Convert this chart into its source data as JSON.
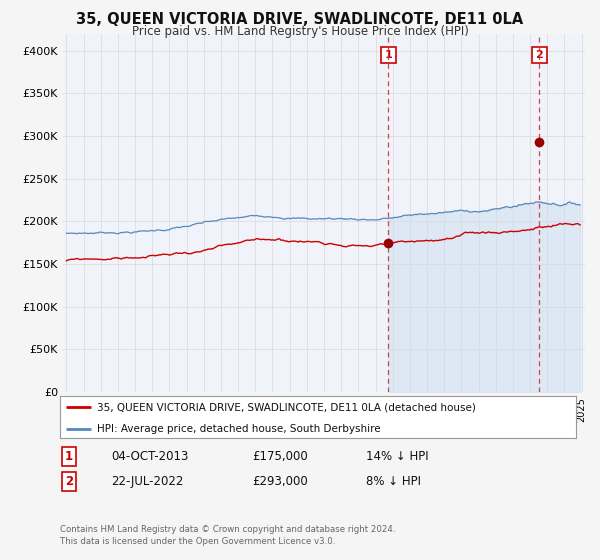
{
  "title": "35, QUEEN VICTORIA DRIVE, SWADLINCOTE, DE11 0LA",
  "subtitle": "Price paid vs. HM Land Registry's House Price Index (HPI)",
  "legend_line1": "35, QUEEN VICTORIA DRIVE, SWADLINCOTE, DE11 0LA (detached house)",
  "legend_line2": "HPI: Average price, detached house, South Derbyshire",
  "annotation1_label": "1",
  "annotation1_date": "04-OCT-2013",
  "annotation1_price": "£175,000",
  "annotation1_pct": "14% ↓ HPI",
  "annotation1_year": 2013.75,
  "annotation1_value": 175000,
  "annotation2_label": "2",
  "annotation2_date": "22-JUL-2022",
  "annotation2_price": "£293,000",
  "annotation2_pct": "8% ↓ HPI",
  "annotation2_year": 2022.55,
  "annotation2_value": 293000,
  "line_color_red": "#cc0000",
  "line_color_blue": "#5588bb",
  "fill_color_blue": "#ccddf0",
  "marker_color_red": "#990000",
  "dashed_line_color": "#cc3333",
  "background_color": "#f5f5f5",
  "plot_bg_color": "#f0f4fa",
  "grid_color": "#dddddd",
  "ylim": [
    0,
    420000
  ],
  "yticks": [
    0,
    50000,
    100000,
    150000,
    200000,
    250000,
    300000,
    350000,
    400000
  ],
  "xlim_start": 1994.8,
  "xlim_end": 2025.2,
  "footer_line1": "Contains HM Land Registry data © Crown copyright and database right 2024.",
  "footer_line2": "This data is licensed under the Open Government Licence v3.0."
}
